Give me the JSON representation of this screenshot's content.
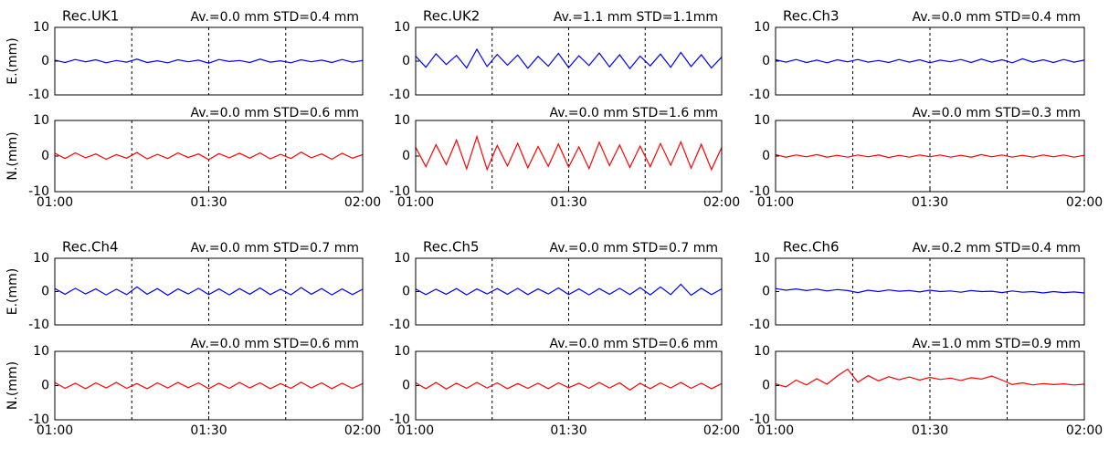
{
  "chart_data": [
    {
      "type": "line",
      "title": "Rec.UK1",
      "annotation": "Av.=0.0 mm STD=0.4 mm",
      "ylabel": "E.(mm)",
      "ylim": [
        -10,
        10
      ],
      "yticks": [
        -10,
        0,
        10
      ],
      "xlim": [
        60,
        120
      ],
      "xgrid": [
        75,
        90,
        105
      ],
      "x": [
        60,
        62,
        64,
        66,
        68,
        70,
        72,
        74,
        76,
        78,
        80,
        82,
        84,
        86,
        88,
        90,
        92,
        94,
        96,
        98,
        100,
        102,
        104,
        106,
        108,
        110,
        112,
        114,
        116,
        118,
        120
      ],
      "series": [
        {
          "color": "#0000ff",
          "values": [
            0.3,
            -0.4,
            0.5,
            -0.2,
            0.4,
            -0.5,
            0.2,
            -0.3,
            0.6,
            -0.4,
            0.1,
            -0.5,
            0.4,
            -0.2,
            0.3,
            -0.6,
            0.5,
            -0.1,
            0.2,
            -0.4,
            0.6,
            -0.3,
            0.1,
            -0.5,
            0.4,
            -0.2,
            0.3,
            -0.4,
            0.5,
            -0.3,
            0.2
          ]
        }
      ]
    },
    {
      "type": "line",
      "annotation": "Av.=0.0 mm STD=0.6 mm",
      "ylabel": "N.(mm)",
      "ylim": [
        -10,
        10
      ],
      "yticks": [
        -10,
        0,
        10
      ],
      "xlim": [
        60,
        120
      ],
      "xgrid": [
        75,
        90,
        105
      ],
      "xticks": [
        {
          "value": 60,
          "label": "01:00"
        },
        {
          "value": 90,
          "label": "01:30"
        },
        {
          "value": 120,
          "label": "02:00"
        }
      ],
      "x": [
        60,
        62,
        64,
        66,
        68,
        70,
        72,
        74,
        76,
        78,
        80,
        82,
        84,
        86,
        88,
        90,
        92,
        94,
        96,
        98,
        100,
        102,
        104,
        106,
        108,
        110,
        112,
        114,
        116,
        118,
        120
      ],
      "series": [
        {
          "color": "#ff0000",
          "values": [
            0.8,
            -0.7,
            0.9,
            -0.5,
            0.6,
            -0.9,
            0.4,
            -0.6,
            1.0,
            -0.8,
            0.5,
            -0.7,
            0.9,
            -0.4,
            0.6,
            -1.0,
            0.7,
            -0.5,
            0.8,
            -0.6,
            0.9,
            -0.8,
            0.5,
            -0.7,
            1.1,
            -0.5,
            0.6,
            -0.9,
            0.8,
            -0.6,
            0.4
          ]
        }
      ]
    },
    {
      "type": "line",
      "title": "Rec.UK2",
      "annotation": "Av.=1.1 mm   STD=1.1mm",
      "ylim": [
        -10,
        10
      ],
      "yticks": [
        -10,
        0,
        10
      ],
      "xlim": [
        60,
        120
      ],
      "xgrid": [
        75,
        90,
        105
      ],
      "x": [
        60,
        62,
        64,
        66,
        68,
        70,
        72,
        74,
        76,
        78,
        80,
        82,
        84,
        86,
        88,
        90,
        92,
        94,
        96,
        98,
        100,
        102,
        104,
        106,
        108,
        110,
        112,
        114,
        116,
        118,
        120
      ],
      "series": [
        {
          "color": "#0000ff",
          "values": [
            1.5,
            -1.8,
            2.2,
            -1.0,
            1.7,
            -2.0,
            3.5,
            -1.6,
            2.0,
            -1.2,
            1.8,
            -2.1,
            1.4,
            -1.5,
            2.3,
            -1.9,
            1.6,
            -1.3,
            2.4,
            -1.7,
            1.9,
            -2.2,
            1.5,
            -1.4,
            2.1,
            -1.8,
            2.6,
            -1.6,
            1.9,
            -2.0,
            1.2
          ]
        }
      ]
    },
    {
      "type": "line",
      "annotation": "Av.=0.0 mm STD=1.6 mm",
      "ylim": [
        -10,
        10
      ],
      "yticks": [
        -10,
        0,
        10
      ],
      "xlim": [
        60,
        120
      ],
      "xgrid": [
        75,
        90,
        105
      ],
      "xticks": [
        {
          "value": 60,
          "label": "01:00"
        },
        {
          "value": 90,
          "label": "01:30"
        },
        {
          "value": 120,
          "label": "02:00"
        }
      ],
      "x": [
        60,
        62,
        64,
        66,
        68,
        70,
        72,
        74,
        76,
        78,
        80,
        82,
        84,
        86,
        88,
        90,
        92,
        94,
        96,
        98,
        100,
        102,
        104,
        106,
        108,
        110,
        112,
        114,
        116,
        118,
        120
      ],
      "series": [
        {
          "color": "#ff0000",
          "values": [
            2.5,
            -3.0,
            3.2,
            -2.4,
            4.5,
            -3.6,
            5.5,
            -3.8,
            3.0,
            -2.8,
            3.6,
            -3.3,
            2.7,
            -2.9,
            3.4,
            -3.1,
            2.6,
            -3.5,
            3.9,
            -2.7,
            3.1,
            -3.2,
            2.8,
            -3.0,
            3.5,
            -2.6,
            4.0,
            -3.4,
            3.3,
            -3.8,
            2.4
          ]
        }
      ]
    },
    {
      "type": "line",
      "title": "Rec.Ch3",
      "annotation": "Av.=0.0 mm STD=0.4 mm",
      "ylim": [
        -10,
        10
      ],
      "yticks": [
        -10,
        0,
        10
      ],
      "xlim": [
        60,
        120
      ],
      "xgrid": [
        75,
        90,
        105
      ],
      "x": [
        60,
        62,
        64,
        66,
        68,
        70,
        72,
        74,
        76,
        78,
        80,
        82,
        84,
        86,
        88,
        90,
        92,
        94,
        96,
        98,
        100,
        102,
        104,
        106,
        108,
        110,
        112,
        114,
        116,
        118,
        120
      ],
      "series": [
        {
          "color": "#0000ff",
          "values": [
            0.4,
            -0.3,
            0.5,
            -0.4,
            0.3,
            -0.5,
            0.4,
            -0.2,
            0.5,
            -0.3,
            0.2,
            -0.4,
            0.5,
            -0.3,
            0.4,
            -0.5,
            0.3,
            -0.2,
            0.5,
            -0.4,
            0.6,
            -0.3,
            0.4,
            -0.5,
            0.7,
            -0.3,
            0.4,
            -0.4,
            0.5,
            -0.3,
            0.3
          ]
        }
      ]
    },
    {
      "type": "line",
      "annotation": "Av.=0.0 mm STD=0.3 mm",
      "ylim": [
        -10,
        10
      ],
      "yticks": [
        -10,
        0,
        10
      ],
      "xlim": [
        60,
        120
      ],
      "xgrid": [
        75,
        90,
        105
      ],
      "xticks": [
        {
          "value": 60,
          "label": "01:00"
        },
        {
          "value": 90,
          "label": "01:30"
        },
        {
          "value": 120,
          "label": "02:00"
        }
      ],
      "x": [
        60,
        62,
        64,
        66,
        68,
        70,
        72,
        74,
        76,
        78,
        80,
        82,
        84,
        86,
        88,
        90,
        92,
        94,
        96,
        98,
        100,
        102,
        104,
        106,
        108,
        110,
        112,
        114,
        116,
        118,
        120
      ],
      "series": [
        {
          "color": "#ff0000",
          "values": [
            0.4,
            -0.3,
            0.3,
            -0.2,
            0.4,
            -0.3,
            0.2,
            -0.3,
            0.3,
            -0.2,
            0.3,
            -0.4,
            0.2,
            -0.3,
            0.3,
            -0.2,
            0.3,
            -0.3,
            0.2,
            -0.3,
            0.4,
            -0.2,
            0.3,
            -0.3,
            0.2,
            -0.3,
            0.3,
            -0.2,
            0.3,
            -0.3,
            0.2
          ]
        }
      ]
    },
    {
      "type": "line",
      "title": "Rec.Ch4",
      "annotation": "Av.=0.0 mm STD=0.7 mm",
      "ylabel": "E.(mm)",
      "ylim": [
        -10,
        10
      ],
      "yticks": [
        -10,
        0,
        10
      ],
      "xlim": [
        60,
        120
      ],
      "xgrid": [
        75,
        90,
        105
      ],
      "x": [
        60,
        62,
        64,
        66,
        68,
        70,
        72,
        74,
        76,
        78,
        80,
        82,
        84,
        86,
        88,
        90,
        92,
        94,
        96,
        98,
        100,
        102,
        104,
        106,
        108,
        110,
        112,
        114,
        116,
        118,
        120
      ],
      "series": [
        {
          "color": "#0000ff",
          "values": [
            0.9,
            -0.8,
            1.0,
            -0.7,
            0.8,
            -1.0,
            0.7,
            -0.9,
            1.4,
            -0.8,
            0.9,
            -1.1,
            0.8,
            -0.7,
            1.0,
            -0.9,
            0.8,
            -1.0,
            0.9,
            -0.8,
            1.1,
            -0.9,
            0.7,
            -1.0,
            1.2,
            -0.8,
            0.9,
            -1.0,
            0.8,
            -0.9,
            0.7
          ]
        }
      ]
    },
    {
      "type": "line",
      "annotation": "Av.=0.0 mm STD=0.6 mm",
      "ylabel": "N.(mm)",
      "ylim": [
        -10,
        10
      ],
      "yticks": [
        -10,
        0,
        10
      ],
      "xlim": [
        60,
        120
      ],
      "xgrid": [
        75,
        90,
        105
      ],
      "xticks": [
        {
          "value": 60,
          "label": "01:00"
        },
        {
          "value": 90,
          "label": "01:30"
        },
        {
          "value": 120,
          "label": "02:00"
        }
      ],
      "x": [
        60,
        62,
        64,
        66,
        68,
        70,
        72,
        74,
        76,
        78,
        80,
        82,
        84,
        86,
        88,
        90,
        92,
        94,
        96,
        98,
        100,
        102,
        104,
        106,
        108,
        110,
        112,
        114,
        116,
        118,
        120
      ],
      "series": [
        {
          "color": "#ff0000",
          "values": [
            0.9,
            -0.8,
            0.7,
            -0.9,
            0.8,
            -0.7,
            0.9,
            -0.8,
            0.6,
            -0.9,
            0.8,
            -0.7,
            0.9,
            -0.6,
            0.8,
            -0.9,
            0.7,
            -0.8,
            0.9,
            -0.7,
            0.8,
            -0.9,
            0.6,
            -0.8,
            1.0,
            -0.7,
            0.8,
            -0.9,
            0.7,
            -0.8,
            0.6
          ]
        }
      ]
    },
    {
      "type": "line",
      "title": "Rec.Ch5",
      "annotation": "Av.=0.0 mm STD=0.7 mm",
      "ylim": [
        -10,
        10
      ],
      "yticks": [
        -10,
        0,
        10
      ],
      "xlim": [
        60,
        120
      ],
      "xgrid": [
        75,
        90,
        105
      ],
      "x": [
        60,
        62,
        64,
        66,
        68,
        70,
        72,
        74,
        76,
        78,
        80,
        82,
        84,
        86,
        88,
        90,
        92,
        94,
        96,
        98,
        100,
        102,
        104,
        106,
        108,
        110,
        112,
        114,
        116,
        118,
        120
      ],
      "series": [
        {
          "color": "#0000ff",
          "values": [
            0.8,
            -0.9,
            0.7,
            -0.8,
            0.9,
            -1.0,
            0.8,
            -0.7,
            0.9,
            -0.8,
            1.0,
            -0.9,
            0.8,
            -0.7,
            1.1,
            -0.9,
            0.8,
            -1.0,
            0.9,
            -0.8,
            1.0,
            -0.9,
            1.2,
            -1.0,
            1.4,
            -0.9,
            2.2,
            -1.1,
            1.0,
            -0.9,
            0.8
          ]
        }
      ]
    },
    {
      "type": "line",
      "annotation": "Av.=0.0 mm STD=0.6 mm",
      "ylim": [
        -10,
        10
      ],
      "yticks": [
        -10,
        0,
        10
      ],
      "xlim": [
        60,
        120
      ],
      "xgrid": [
        75,
        90,
        105
      ],
      "xticks": [
        {
          "value": 60,
          "label": "01:00"
        },
        {
          "value": 90,
          "label": "01:30"
        },
        {
          "value": 120,
          "label": "02:00"
        }
      ],
      "x": [
        60,
        62,
        64,
        66,
        68,
        70,
        72,
        74,
        76,
        78,
        80,
        82,
        84,
        86,
        88,
        90,
        92,
        94,
        96,
        98,
        100,
        102,
        104,
        106,
        108,
        110,
        112,
        114,
        116,
        118,
        120
      ],
      "series": [
        {
          "color": "#ff0000",
          "values": [
            0.8,
            -0.9,
            0.9,
            -1.0,
            0.7,
            -0.8,
            0.9,
            -0.7,
            0.8,
            -0.9,
            0.6,
            -0.8,
            0.7,
            -0.9,
            0.8,
            -0.6,
            0.7,
            -0.8,
            0.9,
            -0.7,
            0.8,
            -1.3,
            0.7,
            -0.9,
            0.8,
            -0.7,
            0.9,
            -0.8,
            0.7,
            -0.9,
            0.6
          ]
        }
      ]
    },
    {
      "type": "line",
      "title": "Rec.Ch6",
      "annotation": "Av.=0.2 mm STD=0.4 mm",
      "ylim": [
        -10,
        10
      ],
      "yticks": [
        -10,
        0,
        10
      ],
      "xlim": [
        60,
        120
      ],
      "xgrid": [
        75,
        90,
        105
      ],
      "x": [
        60,
        62,
        64,
        66,
        68,
        70,
        72,
        74,
        76,
        78,
        80,
        82,
        84,
        86,
        88,
        90,
        92,
        94,
        96,
        98,
        100,
        102,
        104,
        106,
        108,
        110,
        112,
        114,
        116,
        118,
        120
      ],
      "series": [
        {
          "color": "#0000ff",
          "values": [
            0.9,
            0.4,
            0.8,
            0.3,
            0.7,
            0.2,
            0.6,
            0.3,
            -0.3,
            0.4,
            0.0,
            0.5,
            0.1,
            0.3,
            -0.1,
            0.4,
            0.0,
            0.2,
            -0.2,
            0.3,
            0.0,
            0.1,
            -0.3,
            0.2,
            -0.2,
            0.0,
            -0.4,
            0.0,
            -0.3,
            -0.1,
            -0.4
          ]
        }
      ]
    },
    {
      "type": "line",
      "annotation": "Av.=1.0 mm STD=0.9 mm",
      "ylim": [
        -10,
        10
      ],
      "yticks": [
        -10,
        0,
        10
      ],
      "xlim": [
        60,
        120
      ],
      "xgrid": [
        75,
        90,
        105
      ],
      "xticks": [
        {
          "value": 60,
          "label": "01:00"
        },
        {
          "value": 90,
          "label": "01:30"
        },
        {
          "value": 120,
          "label": "02:00"
        }
      ],
      "x": [
        60,
        62,
        64,
        66,
        68,
        70,
        72,
        74,
        76,
        78,
        80,
        82,
        84,
        86,
        88,
        90,
        92,
        94,
        96,
        98,
        100,
        102,
        104,
        106,
        108,
        110,
        112,
        114,
        116,
        118,
        120
      ],
      "series": [
        {
          "color": "#ff0000",
          "values": [
            0.5,
            -0.4,
            1.6,
            0.2,
            2.0,
            0.4,
            2.8,
            4.8,
            1.0,
            2.9,
            1.4,
            2.6,
            1.7,
            2.5,
            1.6,
            2.4,
            1.8,
            2.2,
            1.5,
            2.3,
            1.9,
            2.8,
            1.6,
            0.3,
            0.8,
            0.2,
            0.6,
            0.3,
            0.5,
            0.2,
            0.4
          ]
        }
      ]
    }
  ]
}
